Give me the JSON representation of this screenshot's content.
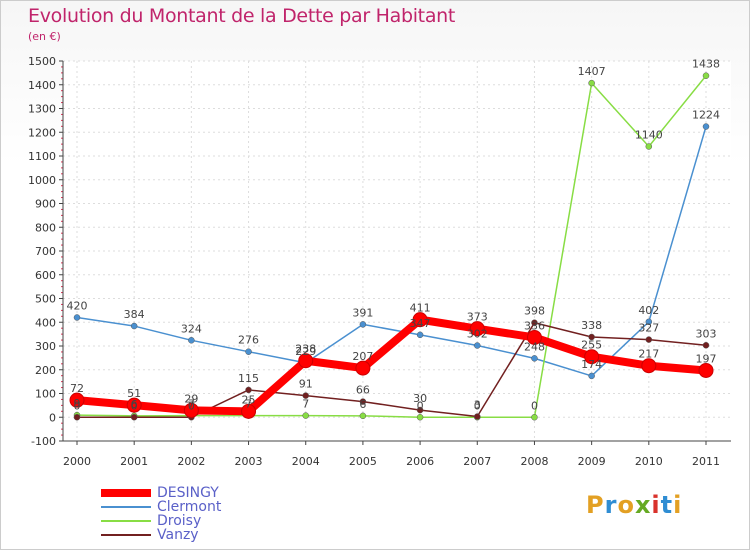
{
  "title": "Evolution du Montant de la Dette par Habitant",
  "subtitle": "(en €)",
  "logo": {
    "text": "Proxiti",
    "letters": [
      "P",
      "r",
      "o",
      "x",
      "i",
      "t",
      "i"
    ],
    "colors": [
      "#e3a023",
      "#2f8dd3",
      "#e3a023",
      "#66aa22",
      "#d9322c",
      "#2f8dd3",
      "#e3a023"
    ]
  },
  "chart_data": {
    "type": "line",
    "title": "Evolution du Montant de la Dette par Habitant",
    "ylabel": "(en €)",
    "x": [
      "2000",
      "2001",
      "2002",
      "2003",
      "2004",
      "2005",
      "2006",
      "2007",
      "2008",
      "2009",
      "2010",
      "2011"
    ],
    "ylim": [
      -100,
      1500
    ],
    "yticks": [
      -100,
      0,
      100,
      200,
      300,
      400,
      500,
      600,
      700,
      800,
      900,
      1000,
      1100,
      1200,
      1300,
      1400,
      1500
    ],
    "grid": true,
    "legend_position": "bottom-left",
    "series": [
      {
        "name": "DESINGY",
        "color": "#ff0000",
        "values": [
          72,
          51,
          29,
          25,
          238,
          207,
          411,
          373,
          336,
          255,
          217,
          197
        ]
      },
      {
        "name": "Clermont",
        "color": "#4a90d0",
        "values": [
          420,
          384,
          324,
          276,
          229,
          391,
          347,
          302,
          248,
          174,
          402,
          1224
        ]
      },
      {
        "name": "Droisy",
        "color": "#88dd44",
        "values": [
          9,
          6,
          7,
          7,
          7,
          6,
          0,
          0,
          0,
          1407,
          1140,
          1438
        ]
      },
      {
        "name": "Vanzy",
        "color": "#722020",
        "values": [
          0,
          0,
          0,
          115,
          91,
          66,
          30,
          3,
          398,
          338,
          327,
          303
        ]
      }
    ]
  }
}
